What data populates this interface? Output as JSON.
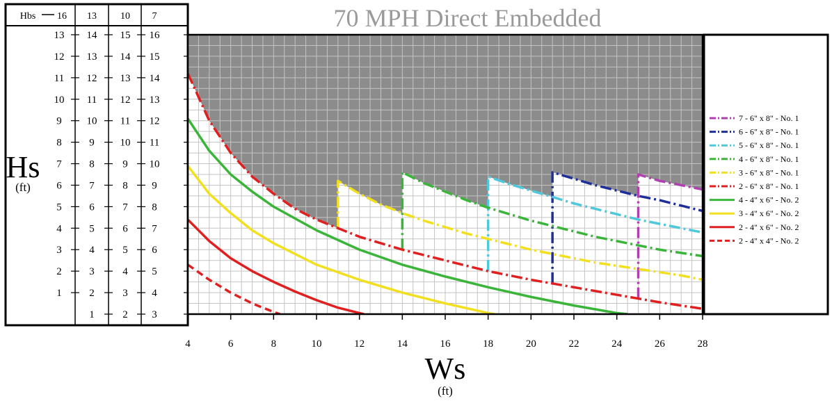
{
  "chart_data": {
    "type": "line",
    "title": "70 MPH Direct Embedded",
    "xlabel": "Ws",
    "xunit": "(ft)",
    "ylabel": "Hs",
    "yunit": "(ft)",
    "xlim": [
      4,
      28
    ],
    "ylim": [
      3,
      16
    ],
    "x_ticks": [
      4,
      6,
      8,
      10,
      12,
      14,
      16,
      18,
      20,
      22,
      24,
      26,
      28
    ],
    "grid": true,
    "legend_position": "right",
    "unsafe_region_color": "#8c8c8c",
    "hbs_table": {
      "header_label": "Hbs",
      "headers": [
        "16",
        "13",
        "10",
        "7"
      ],
      "columns": [
        [
          "13",
          "12",
          "11",
          "10",
          "9",
          "8",
          "7",
          "6",
          "5",
          "4",
          "3",
          "2",
          "1",
          ""
        ],
        [
          "14",
          "13",
          "12",
          "11",
          "10",
          "9",
          "8",
          "7",
          "6",
          "5",
          "4",
          "3",
          "2",
          "1"
        ],
        [
          "15",
          "14",
          "13",
          "12",
          "11",
          "10",
          "9",
          "8",
          "7",
          "6",
          "5",
          "4",
          "3",
          "2"
        ],
        [
          "16",
          "15",
          "14",
          "13",
          "12",
          "11",
          "10",
          "9",
          "8",
          "7",
          "6",
          "5",
          "4",
          "3"
        ]
      ]
    },
    "series": [
      {
        "name": "7 - 6\" x 8\" - No. 1",
        "color": "#b040b0",
        "dash": "dashdot",
        "jump_x": 25,
        "x": [
          25,
          26,
          27,
          28
        ],
        "y": [
          9.5,
          9.2,
          9.0,
          8.8
        ]
      },
      {
        "name": "6 - 6\" x 8\" - No. 1",
        "color": "#1f2f9a",
        "dash": "dashdot",
        "jump_x": 21,
        "x": [
          21,
          22,
          23,
          24,
          25,
          26,
          27,
          28
        ],
        "y": [
          9.6,
          9.3,
          9.0,
          8.75,
          8.5,
          8.3,
          8.05,
          7.8
        ]
      },
      {
        "name": "5 - 6\" x 8\" - No. 1",
        "color": "#4fc8dc",
        "dash": "dashdot",
        "jump_x": 18,
        "x": [
          18,
          19,
          20,
          21,
          22,
          23,
          24,
          25,
          26,
          27,
          28
        ],
        "y": [
          9.4,
          9.05,
          8.75,
          8.45,
          8.15,
          7.9,
          7.65,
          7.4,
          7.2,
          7.0,
          6.8
        ]
      },
      {
        "name": "4 - 6\" x 8\" - No. 1",
        "color": "#3ab53a",
        "dash": "dashdot",
        "jump_x": 14,
        "x": [
          14,
          15,
          16,
          17,
          18,
          19,
          20,
          21,
          22,
          23,
          24,
          25,
          26,
          27,
          28
        ],
        "y": [
          9.6,
          9.1,
          8.7,
          8.3,
          7.95,
          7.65,
          7.35,
          7.1,
          6.85,
          6.6,
          6.4,
          6.2,
          6.0,
          5.85,
          5.7
        ]
      },
      {
        "name": "3 - 6\" x 8\" - No. 1",
        "color": "#f2e020",
        "dash": "dashdot",
        "jump_x": 11,
        "x": [
          11,
          12,
          13,
          14,
          15,
          16,
          17,
          18,
          19,
          20,
          21,
          22,
          23,
          24,
          25,
          26,
          27,
          28
        ],
        "y": [
          9.2,
          8.6,
          8.1,
          7.7,
          7.35,
          7.05,
          6.75,
          6.5,
          6.25,
          6.0,
          5.8,
          5.6,
          5.4,
          5.25,
          5.1,
          4.95,
          4.8,
          4.6
        ]
      },
      {
        "name": "2 - 6\" x 8\" - No. 1",
        "color": "#e02020",
        "dash": "dashdot",
        "x": [
          4,
          5,
          6,
          7,
          8,
          9,
          10,
          11,
          12,
          14,
          16,
          18,
          20,
          22,
          24,
          26,
          28
        ],
        "y": [
          14.2,
          12.0,
          10.5,
          9.4,
          8.6,
          7.9,
          7.4,
          7.0,
          6.6,
          6.0,
          5.5,
          5.0,
          4.6,
          4.25,
          3.9,
          3.55,
          3.25
        ]
      },
      {
        "name": "4 - 4\" x 6\" - No. 2",
        "color": "#3ab53a",
        "dash": "solid",
        "x": [
          4,
          5,
          6,
          7,
          8,
          10,
          12,
          14,
          16,
          18,
          20,
          22,
          24,
          24.5
        ],
        "y": [
          12.1,
          10.6,
          9.5,
          8.7,
          8.0,
          6.9,
          6.0,
          5.3,
          4.75,
          4.25,
          3.8,
          3.4,
          3.05,
          3.0
        ]
      },
      {
        "name": "3 - 4\" x 6\" - No. 2",
        "color": "#f2e020",
        "dash": "solid",
        "x": [
          4,
          5,
          6,
          7,
          8,
          10,
          12,
          14,
          16,
          18,
          18.3
        ],
        "y": [
          9.9,
          8.6,
          7.7,
          6.9,
          6.3,
          5.3,
          4.6,
          4.0,
          3.5,
          3.05,
          3.0
        ]
      },
      {
        "name": "2 - 4\" x 6\" - No. 2",
        "color": "#e02020",
        "dash": "solid",
        "x": [
          4,
          5,
          6,
          7,
          8,
          9,
          10,
          11,
          12,
          12.2
        ],
        "y": [
          7.4,
          6.4,
          5.6,
          5.0,
          4.5,
          4.05,
          3.65,
          3.3,
          3.05,
          3.0
        ]
      },
      {
        "name": "2 - 4\" x 4\" - No. 2",
        "color": "#e02020",
        "dash": "dashed",
        "x": [
          4,
          5,
          6,
          7,
          8,
          8.3
        ],
        "y": [
          5.3,
          4.6,
          4.0,
          3.5,
          3.1,
          3.0
        ]
      }
    ]
  }
}
